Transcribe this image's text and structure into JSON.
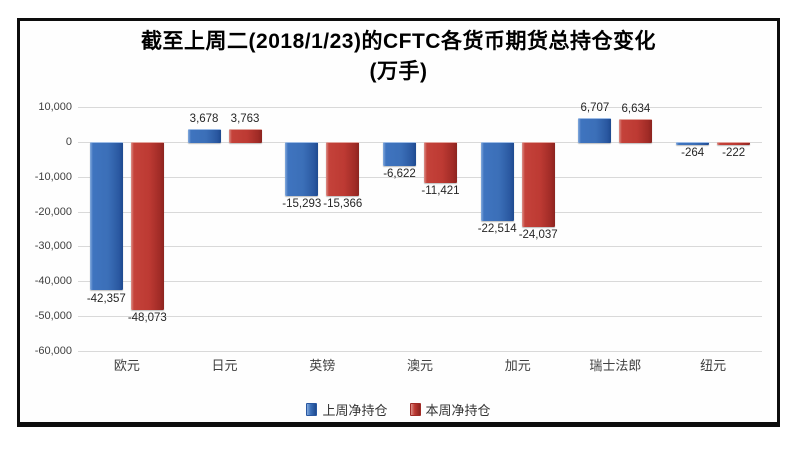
{
  "window": {
    "background": "#ffffff",
    "frame_border_color": "#0d0d0d"
  },
  "title": {
    "line1": "截至上周二(2018/1/23)的CFTC各货币期货总持仓变化",
    "line2": "(万手)"
  },
  "chart_data": {
    "type": "bar",
    "title": "截至上周二(2018/1/23)的CFTC各货币期货总持仓变化 (万手)",
    "categories": [
      "欧元",
      "日元",
      "英镑",
      "澳元",
      "加元",
      "瑞士法郎",
      "纽元"
    ],
    "series": [
      {
        "name": "上周净持仓",
        "color": "#3B6FB8",
        "values": [
          -42357,
          3678,
          -15293,
          -6622,
          -22514,
          6707,
          -264
        ],
        "labels": [
          "-42,357",
          "3,678",
          "-15,293",
          "-6,622",
          "-22,514",
          "6,707",
          "-264"
        ]
      },
      {
        "name": "本周净持仓",
        "color": "#BD3A33",
        "values": [
          -48073,
          3763,
          -15366,
          -11421,
          -24037,
          6634,
          -222
        ],
        "labels": [
          "-48,073",
          "3,763",
          "-15,366",
          "-11,421",
          "-24,037",
          "6,634",
          "-222"
        ]
      }
    ],
    "y_axis": {
      "ticks": [
        10000,
        0,
        -10000,
        -20000,
        -30000,
        -40000,
        -50000,
        -60000
      ],
      "tick_labels": [
        "10,000",
        "0",
        "-10,000",
        "-20,000",
        "-30,000",
        "-40,000",
        "-50,000",
        "-60,000"
      ],
      "range": [
        -60000,
        10000
      ]
    },
    "grid": "horizontal",
    "gridline_color": "#d9d9d9",
    "legend_position": "bottom"
  }
}
